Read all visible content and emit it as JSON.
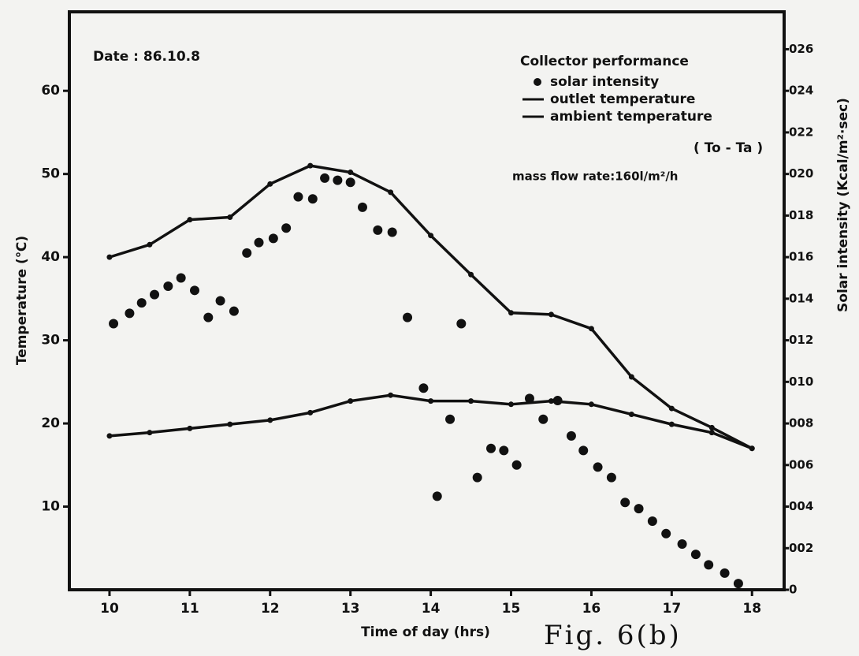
{
  "chart_data": {
    "type": "line",
    "annotation": "Date : 86.10.8",
    "legend_title": "Collector performance",
    "legend_note": "( To - Ta )",
    "flow_note": "mass flow rate:160l/m²/h",
    "caption": "Fig. 6(b)",
    "xlabel": "Time of day (hrs)",
    "ylabel": "Temperature (℃)",
    "y2label": "Solar intensity (Kcal/m²·sec)",
    "xlim": [
      9.5,
      18.4
    ],
    "xticks": [
      10,
      11,
      12,
      13,
      14,
      15,
      16,
      17,
      18
    ],
    "ylim": [
      0,
      69.5
    ],
    "yticks": [
      10,
      20,
      30,
      40,
      50,
      60
    ],
    "y2lim": [
      0,
      0.0278
    ],
    "y2ticks": [
      0,
      {
        "value": 0.002,
        "label": "002"
      },
      {
        "value": 0.004,
        "label": "004"
      },
      {
        "value": 0.006,
        "label": "006"
      },
      {
        "value": 0.008,
        "label": "008"
      },
      {
        "value": 0.01,
        "label": "010"
      },
      {
        "value": 0.012,
        "label": "012"
      },
      {
        "value": 0.014,
        "label": "014"
      },
      {
        "value": 0.016,
        "label": "016"
      },
      {
        "value": 0.018,
        "label": "018"
      },
      {
        "value": 0.02,
        "label": "020"
      },
      {
        "value": 0.022,
        "label": "022"
      },
      {
        "value": 0.024,
        "label": "024"
      },
      {
        "value": 0.026,
        "label": "026"
      }
    ],
    "legend_position": "upper right",
    "series": [
      {
        "name": "solar intensity",
        "color": "#111111",
        "style": "markers",
        "axis": "y2",
        "x": [
          10.05,
          10.25,
          10.4,
          10.56,
          10.73,
          10.89,
          11.06,
          11.23,
          11.38,
          11.55,
          11.71,
          11.86,
          12.04,
          12.2,
          12.35,
          12.53,
          12.68,
          12.84,
          13.0,
          13.15,
          13.34,
          13.52,
          13.71,
          13.91,
          14.08,
          14.24,
          14.38,
          14.58,
          14.75,
          14.91,
          15.07,
          15.23,
          15.4,
          15.58,
          15.75,
          15.9,
          16.08,
          16.25,
          16.42,
          16.59,
          16.76,
          16.93,
          17.13,
          17.3,
          17.46,
          17.66,
          17.83
        ],
        "values": [
          0.0128,
          0.0133,
          0.0138,
          0.0142,
          0.0146,
          0.015,
          0.0144,
          0.0131,
          0.0139,
          0.0134,
          0.0162,
          0.0167,
          0.0169,
          0.0174,
          0.0189,
          0.0188,
          0.0198,
          0.0197,
          0.0196,
          0.0184,
          0.0173,
          0.0172,
          0.0131,
          0.0097,
          0.0045,
          0.0082,
          0.0128,
          0.0054,
          0.0068,
          0.0067,
          0.006,
          0.0092,
          0.0082,
          0.0091,
          0.0074,
          0.0067,
          0.0059,
          0.0054,
          0.0042,
          0.0039,
          0.0033,
          0.0027,
          0.0022,
          0.0017,
          0.0012,
          0.0008,
          0.0003
        ]
      },
      {
        "name": "outlet temperature",
        "color": "#111111",
        "style": "line",
        "x": [
          10.0,
          10.5,
          11.0,
          11.5,
          12.0,
          12.5,
          13.0,
          13.5,
          14.0,
          14.5,
          15.0,
          15.5,
          16.0,
          16.5,
          17.0,
          17.5,
          18.0
        ],
        "values": [
          40.0,
          41.5,
          44.5,
          44.8,
          48.8,
          51.0,
          50.2,
          47.8,
          42.6,
          37.9,
          33.3,
          33.1,
          31.4,
          25.6,
          21.8,
          19.5,
          17.0
        ]
      },
      {
        "name": "ambient temperature",
        "color": "#111111",
        "style": "line",
        "x": [
          10.0,
          10.5,
          11.0,
          11.5,
          12.0,
          12.5,
          13.0,
          13.5,
          14.0,
          14.5,
          15.0,
          15.5,
          16.0,
          16.5,
          17.0,
          17.5,
          18.0
        ],
        "values": [
          18.5,
          18.9,
          19.4,
          19.9,
          20.4,
          21.3,
          22.7,
          23.4,
          22.7,
          22.7,
          22.3,
          22.7,
          22.3,
          21.1,
          19.9,
          18.9,
          17.0
        ]
      }
    ]
  }
}
